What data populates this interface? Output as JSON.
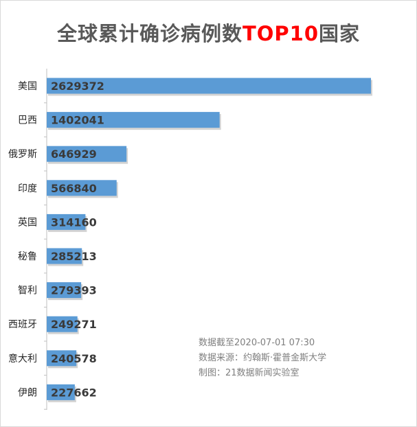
{
  "colors": {
    "bar": "#5b9bd5",
    "title": "#595959",
    "title_highlight": "#ff0000",
    "axis": "#bfbfbf"
  },
  "chart_data": {
    "type": "bar",
    "orientation": "horizontal",
    "title_parts": [
      "全球累计确诊病例数",
      "TOP10",
      "国家"
    ],
    "categories": [
      "美国",
      "巴西",
      "俄罗斯",
      "印度",
      "英国",
      "秘鲁",
      "智利",
      "西班牙",
      "意大利",
      "伊朗"
    ],
    "values": [
      2629372,
      1402041,
      646929,
      566840,
      314160,
      285213,
      279393,
      249271,
      240578,
      227662
    ],
    "data_labels": [
      "2629372",
      "1402041",
      "646929",
      "566840",
      "314160",
      "285213",
      "279393",
      "249271",
      "240578",
      "227662"
    ],
    "xlim": [
      0,
      2629372
    ],
    "grid": false,
    "legend": "none"
  },
  "notes": {
    "date": "数据截至2020-07-01 07:30",
    "source": "数据来源：约翰斯·霍普金斯大学",
    "maker": "制图：21数据新闻实验室"
  }
}
